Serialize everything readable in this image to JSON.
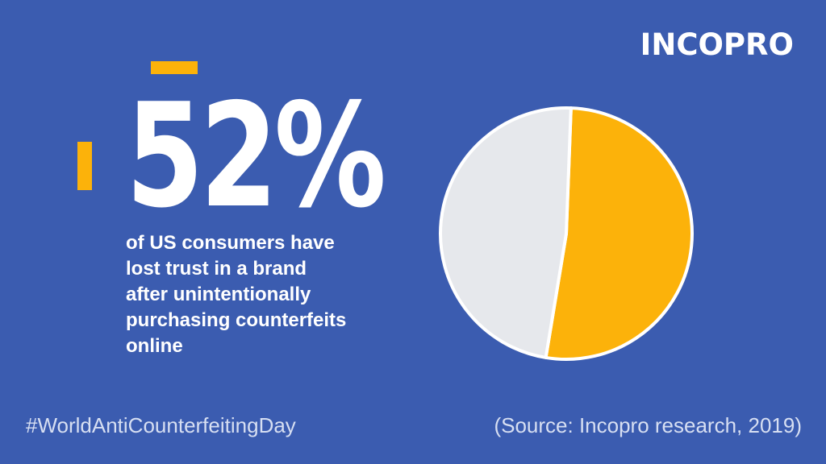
{
  "brand": {
    "logo_text": "INCOPRO"
  },
  "headline": {
    "stat": "52%",
    "description": "of US consumers have\nlost trust in a brand\nafter unintentionally\npurchasing counterfeits\nonline"
  },
  "footer": {
    "hashtag": "#WorldAntiCounterfeitingDay",
    "source": "(Source: Incopro research, 2019)"
  },
  "colors": {
    "background": "#3b5cb0",
    "accent": "#fcb20a",
    "pie_rest": "#e6e8ec",
    "pie_stroke": "#ffffff"
  },
  "chart_data": {
    "type": "pie",
    "values": [
      52,
      48
    ],
    "colors": [
      "#fcb20a",
      "#e6e8ec"
    ]
  }
}
